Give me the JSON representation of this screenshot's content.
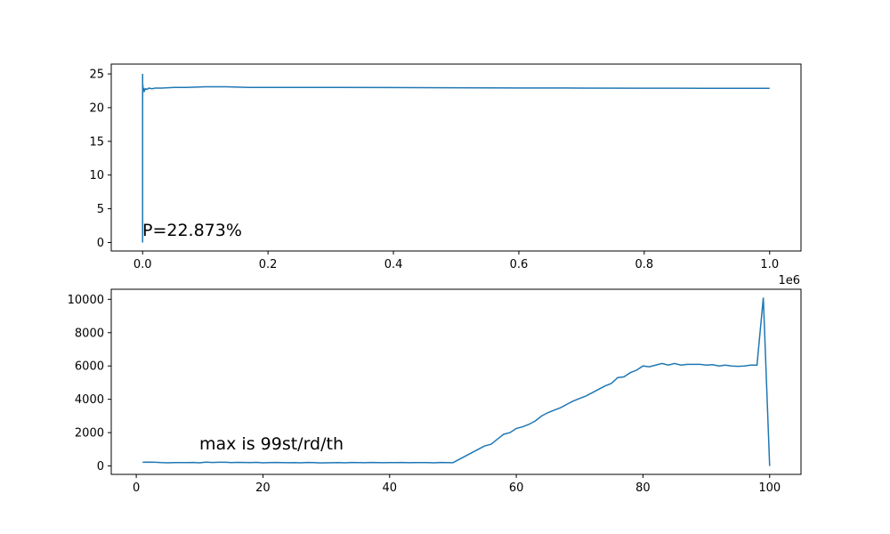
{
  "chart_data": [
    {
      "type": "line",
      "xlim": [
        -50000,
        1050000
      ],
      "ylim": [
        -1.26,
        26.46
      ],
      "x_ticks": [
        0,
        200000,
        400000,
        600000,
        800000,
        1000000
      ],
      "x_tick_labels": [
        "0.0",
        "0.2",
        "0.4",
        "0.6",
        "0.8",
        "1.0"
      ],
      "x_offset_label": "1e6",
      "y_ticks": [
        0,
        5,
        10,
        15,
        20,
        25
      ],
      "y_tick_labels": [
        "0",
        "5",
        "10",
        "15",
        "20",
        "25"
      ],
      "annotation": "P=22.873%",
      "color": "#1f77b4",
      "series": [
        {
          "x": [
            0,
            1,
            2,
            3,
            5,
            8,
            10,
            15,
            20,
            30,
            40,
            60,
            80,
            100,
            150,
            200,
            300,
            500,
            700,
            1000,
            1500,
            2000,
            3000,
            4000,
            5000,
            7000,
            10000,
            15000,
            20000,
            30000,
            50000,
            70000,
            100000,
            130000,
            170000,
            200000,
            250000,
            300000,
            400000,
            500000,
            600000,
            700000,
            800000,
            900000,
            1000000
          ],
          "y": [
            0,
            25,
            10,
            22,
            19,
            24,
            21,
            23,
            20,
            24.5,
            22,
            23.5,
            21.5,
            23,
            22,
            23.2,
            22.2,
            23.4,
            22.3,
            22.6,
            22.4,
            22.9,
            22.5,
            22.7,
            22.8,
            22.7,
            22.9,
            22.8,
            22.9,
            22.9,
            23.0,
            23.0,
            23.1,
            23.1,
            23.0,
            23.0,
            23.0,
            23.0,
            22.98,
            22.95,
            22.92,
            22.9,
            22.88,
            22.87,
            22.87
          ]
        }
      ]
    },
    {
      "type": "line",
      "xlim": [
        -3.95,
        104.95
      ],
      "ylim": [
        -505,
        10605
      ],
      "x_ticks": [
        0,
        20,
        40,
        60,
        80,
        100
      ],
      "x_tick_labels": [
        "0",
        "20",
        "40",
        "60",
        "80",
        "100"
      ],
      "y_ticks": [
        0,
        2000,
        4000,
        6000,
        8000,
        10000
      ],
      "y_tick_labels": [
        "0",
        "2000",
        "4000",
        "6000",
        "8000",
        "10000"
      ],
      "annotation": "max is 99st/rd/th",
      "color": "#1f77b4",
      "series": [
        {
          "x": [
            1,
            2,
            3,
            4,
            5,
            6,
            7,
            8,
            9,
            10,
            11,
            12,
            13,
            14,
            15,
            16,
            17,
            18,
            19,
            20,
            21,
            22,
            23,
            24,
            25,
            26,
            27,
            28,
            29,
            30,
            31,
            32,
            33,
            34,
            35,
            36,
            37,
            38,
            39,
            40,
            41,
            42,
            43,
            44,
            45,
            46,
            47,
            48,
            49,
            50,
            51,
            52,
            53,
            54,
            55,
            56,
            57,
            58,
            59,
            60,
            61,
            62,
            63,
            64,
            65,
            66,
            67,
            68,
            69,
            70,
            71,
            72,
            73,
            74,
            75,
            76,
            77,
            78,
            79,
            80,
            81,
            82,
            83,
            84,
            85,
            86,
            87,
            88,
            89,
            90,
            91,
            92,
            93,
            94,
            95,
            96,
            97,
            98,
            99,
            100
          ],
          "y": [
            220,
            230,
            220,
            200,
            190,
            200,
            205,
            200,
            210,
            190,
            230,
            210,
            220,
            225,
            200,
            215,
            210,
            205,
            215,
            190,
            200,
            210,
            200,
            195,
            205,
            190,
            210,
            200,
            185,
            190,
            195,
            200,
            190,
            210,
            200,
            195,
            210,
            200,
            195,
            205,
            200,
            210,
            195,
            200,
            205,
            200,
            190,
            210,
            200,
            195,
            400,
            600,
            800,
            1000,
            1200,
            1300,
            1600,
            1900,
            2000,
            2250,
            2350,
            2500,
            2700,
            3000,
            3200,
            3350,
            3500,
            3700,
            3900,
            4050,
            4200,
            4400,
            4600,
            4800,
            4950,
            5300,
            5350,
            5600,
            5750,
            6000,
            5950,
            6050,
            6150,
            6050,
            6150,
            6050,
            6100,
            6100,
            6100,
            6050,
            6080,
            6000,
            6050,
            6000,
            5980,
            6000,
            6050,
            6050,
            10100,
            0
          ]
        }
      ]
    }
  ]
}
